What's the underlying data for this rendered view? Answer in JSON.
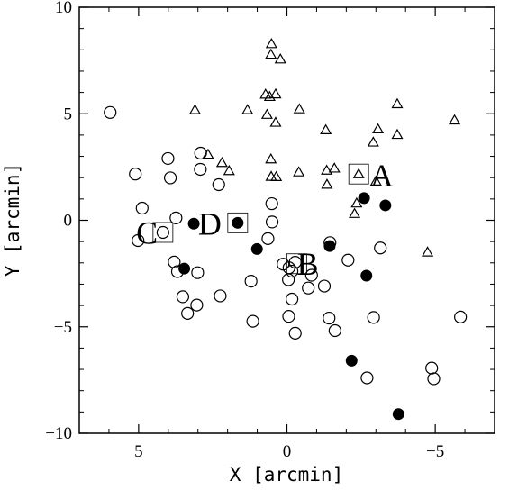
{
  "chart_data": {
    "type": "scatter",
    "title": "",
    "xlabel": "X [arcmin]",
    "ylabel": "Y [arcmin]",
    "xlim": [
      7.0,
      -7.0
    ],
    "ylim": [
      -10,
      10
    ],
    "x_ticks": [
      5,
      0,
      -5
    ],
    "x_tick_labels": [
      "5",
      "0",
      "−5"
    ],
    "y_ticks": [
      -10,
      -5,
      0,
      5,
      10
    ],
    "y_tick_labels": [
      "−10",
      "−5",
      "0",
      "5",
      "10"
    ],
    "grid": false,
    "series": [
      {
        "marker": "open-circle",
        "points": [
          [
            5.96,
            5.06
          ],
          [
            5.11,
            2.17
          ],
          [
            4.88,
            0.57
          ],
          [
            5.02,
            -0.95
          ],
          [
            4.01,
            2.9
          ],
          [
            3.93,
            1.99
          ],
          [
            3.74,
            0.11
          ],
          [
            4.18,
            -0.57
          ],
          [
            3.8,
            -1.96
          ],
          [
            3.69,
            -2.41
          ],
          [
            3.51,
            -3.59
          ],
          [
            3.35,
            -4.37
          ],
          [
            3.01,
            -2.46
          ],
          [
            3.04,
            -3.98
          ],
          [
            2.91,
            3.15
          ],
          [
            2.92,
            2.39
          ],
          [
            2.3,
            1.67
          ],
          [
            2.25,
            -3.55
          ],
          [
            1.15,
            -4.74
          ],
          [
            1.21,
            -2.86
          ],
          [
            0.64,
            -0.86
          ],
          [
            0.51,
            0.78
          ],
          [
            0.5,
            -0.08
          ],
          [
            0.13,
            -2.06
          ],
          [
            -0.05,
            -2.79
          ],
          [
            -0.07,
            -2.23
          ],
          [
            -0.06,
            -4.51
          ],
          [
            -0.17,
            -2.39
          ],
          [
            -0.17,
            -3.7
          ],
          [
            -0.28,
            -1.97
          ],
          [
            -0.28,
            -5.3
          ],
          [
            -0.72,
            -3.18
          ],
          [
            -0.83,
            -2.58
          ],
          [
            -1.26,
            -3.09
          ],
          [
            -1.42,
            -4.59
          ],
          [
            -1.45,
            -1.05
          ],
          [
            -1.62,
            -5.18
          ],
          [
            -2.06,
            -1.87
          ],
          [
            -2.7,
            -7.4
          ],
          [
            -2.92,
            -4.56
          ],
          [
            -3.15,
            -1.3
          ],
          [
            -4.88,
            -6.94
          ],
          [
            -4.95,
            -7.44
          ],
          [
            -5.85,
            -4.54
          ]
        ]
      },
      {
        "marker": "filled-circle",
        "points": [
          [
            3.14,
            -0.16
          ],
          [
            3.46,
            -2.27
          ],
          [
            1.66,
            -0.12
          ],
          [
            1.01,
            -1.35
          ],
          [
            -1.44,
            -1.21
          ],
          [
            -2.6,
            1.04
          ],
          [
            -3.32,
            0.7
          ],
          [
            -2.68,
            -2.6
          ],
          [
            -2.18,
            -6.59
          ],
          [
            -3.76,
            -9.1
          ]
        ]
      },
      {
        "marker": "open-triangle",
        "points": [
          [
            0.52,
            8.28
          ],
          [
            0.54,
            7.78
          ],
          [
            0.22,
            7.56
          ],
          [
            0.72,
            5.91
          ],
          [
            0.58,
            5.8
          ],
          [
            0.38,
            5.92
          ],
          [
            3.1,
            5.18
          ],
          [
            1.33,
            5.18
          ],
          [
            0.67,
            4.96
          ],
          [
            0.38,
            4.59
          ],
          [
            -0.42,
            5.22
          ],
          [
            -1.31,
            4.24
          ],
          [
            -3.07,
            4.28
          ],
          [
            -3.72,
            5.46
          ],
          [
            -5.65,
            4.7
          ],
          [
            -2.91,
            3.66
          ],
          [
            -3.72,
            4.02
          ],
          [
            2.66,
            3.09
          ],
          [
            2.19,
            2.7
          ],
          [
            1.95,
            2.32
          ],
          [
            0.54,
            2.87
          ],
          [
            0.53,
            2.05
          ],
          [
            0.36,
            2.04
          ],
          [
            -0.4,
            2.26
          ],
          [
            -1.34,
            2.34
          ],
          [
            -1.6,
            2.44
          ],
          [
            -1.35,
            1.68
          ],
          [
            -2.42,
            2.17
          ],
          [
            -2.35,
            0.8
          ],
          [
            -2.28,
            0.31
          ],
          [
            -4.74,
            -1.5
          ],
          [
            -3.0,
            1.83
          ]
        ]
      }
    ],
    "annotations": [
      {
        "text": "A",
        "box_at": [
          -2.42,
          2.17
        ],
        "text_at": [
          -3.2,
          2.1
        ]
      },
      {
        "text": "B",
        "box_at": [
          -0.33,
          -2.04
        ],
        "text_at": [
          -0.7,
          -2.05
        ]
      },
      {
        "text": "C",
        "box_at": [
          4.18,
          -0.57
        ],
        "text_at": [
          4.72,
          -0.6
        ]
      },
      {
        "text": "D",
        "box_at": [
          1.66,
          -0.12
        ],
        "text_at": [
          2.6,
          -0.17
        ]
      }
    ]
  }
}
